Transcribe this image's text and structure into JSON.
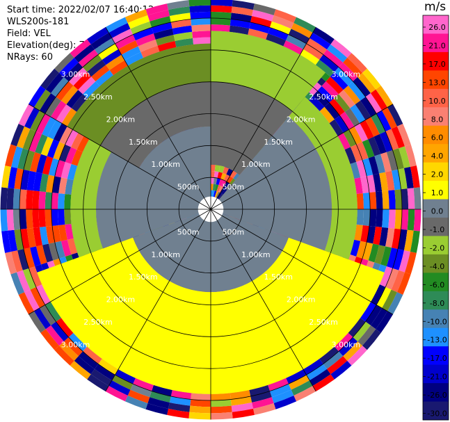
{
  "info": {
    "start_time": "Start time: 2022/02/07 16:40:12",
    "instrument": "WLS200s-181",
    "field": "Field: VEL",
    "elevation": "Elevation(deg): 75.00",
    "nrays": "NRays: 60"
  },
  "chart_data": {
    "type": "heatmap",
    "subtype": "polar-ppi",
    "range_rings_km": [
      0.5,
      1.0,
      1.5,
      2.0,
      2.5,
      3.0
    ],
    "ring_labels": [
      "500m",
      "1.00km",
      "1.50km",
      "2.00km",
      "2.50km",
      "3.00km"
    ],
    "nrays": 60,
    "colorbar": {
      "unit": "m/s",
      "tick_labels": [
        "26.0",
        "21.0",
        "17.0",
        "13.0",
        "10.0",
        "8.0",
        "6.0",
        "4.0",
        "2.0",
        "1.0",
        "0.0",
        "-1.0",
        "-2.0",
        "-4.0",
        "-6.0",
        "-8.0",
        "-10.0",
        "-13.0",
        "-17.0",
        "-21.0",
        "-26.0",
        "-30.0"
      ],
      "bins": [
        {
          "min": 26,
          "max": 30,
          "color": "#ff66cc"
        },
        {
          "min": 21,
          "max": 26,
          "color": "#ff1493"
        },
        {
          "min": 17,
          "max": 21,
          "color": "#ff0000"
        },
        {
          "min": 13,
          "max": 17,
          "color": "#ff4500"
        },
        {
          "min": 10,
          "max": 13,
          "color": "#ff6347"
        },
        {
          "min": 8,
          "max": 10,
          "color": "#fa8072"
        },
        {
          "min": 6,
          "max": 8,
          "color": "#ff8c00"
        },
        {
          "min": 4,
          "max": 6,
          "color": "#ffa500"
        },
        {
          "min": 2,
          "max": 4,
          "color": "#ffd700"
        },
        {
          "min": 1,
          "max": 2,
          "color": "#ffff00"
        },
        {
          "min": 0,
          "max": 1,
          "color": "#708090"
        },
        {
          "min": -1,
          "max": 0,
          "color": "#696969"
        },
        {
          "min": -2,
          "max": -1,
          "color": "#9acd32"
        },
        {
          "min": -4,
          "max": -2,
          "color": "#6b8e23"
        },
        {
          "min": -6,
          "max": -4,
          "color": "#228b22"
        },
        {
          "min": -8,
          "max": -6,
          "color": "#2e8b57"
        },
        {
          "min": -10,
          "max": -8,
          "color": "#4682b4"
        },
        {
          "min": -13,
          "max": -10,
          "color": "#1e90ff"
        },
        {
          "min": -17,
          "max": -13,
          "color": "#0000ff"
        },
        {
          "min": -21,
          "max": -17,
          "color": "#0000cd"
        },
        {
          "min": -26,
          "max": -21,
          "color": "#000080"
        },
        {
          "min": -30,
          "max": -26,
          "color": "#191970"
        }
      ]
    },
    "sectors": [
      {
        "from_deg": 0,
        "to_deg": 40,
        "inner_km": 0.7,
        "outer_km": 2.0,
        "value": -0.5
      },
      {
        "from_deg": 0,
        "to_deg": 40,
        "inner_km": 2.0,
        "outer_km": 2.8,
        "value": -1.5
      },
      {
        "from_deg": 40,
        "to_deg": 110,
        "inner_km": 0.1,
        "outer_km": 1.9,
        "value": 0.5
      },
      {
        "from_deg": 40,
        "to_deg": 110,
        "inner_km": 1.9,
        "outer_km": 2.3,
        "value": -1.5
      },
      {
        "from_deg": 110,
        "to_deg": 250,
        "inner_km": 0.1,
        "outer_km": 1.3,
        "value": 0.5
      },
      {
        "from_deg": 110,
        "to_deg": 250,
        "inner_km": 1.3,
        "outer_km": 2.9,
        "value": 1.5
      },
      {
        "from_deg": 250,
        "to_deg": 300,
        "inner_km": 0.1,
        "outer_km": 1.8,
        "value": 0.5
      },
      {
        "from_deg": 250,
        "to_deg": 300,
        "inner_km": 1.8,
        "outer_km": 2.2,
        "value": -1.5
      },
      {
        "from_deg": 300,
        "to_deg": 360,
        "inner_km": 0.1,
        "outer_km": 1.3,
        "value": 0.5
      },
      {
        "from_deg": 300,
        "to_deg": 360,
        "inner_km": 1.3,
        "outer_km": 2.0,
        "value": -0.5
      },
      {
        "from_deg": 300,
        "to_deg": 360,
        "inner_km": 2.0,
        "outer_km": 2.6,
        "value": -3.0
      }
    ]
  }
}
